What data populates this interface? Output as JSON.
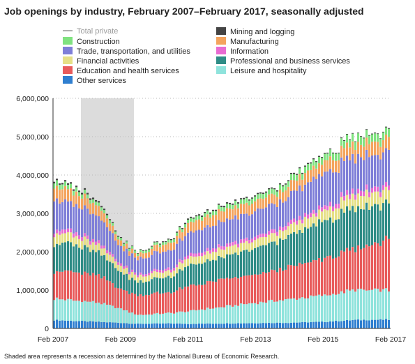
{
  "chart_data": {
    "type": "bar",
    "stacked": true,
    "title": "Job openings by industry, February 2007–February 2017, seasonally adjusted",
    "note": "Shaded area represents a recession as determined by the National Bureau of Economic Research.",
    "xlabel": "",
    "ylabel": "",
    "ylim": [
      0,
      6000000
    ],
    "y_ticks": [
      "0",
      "1,000,000",
      "2,000,000",
      "3,000,000",
      "4,000,000",
      "5,000,000",
      "6,000,000"
    ],
    "x_ticks": [
      "Feb 2007",
      "Feb 2009",
      "Feb 2011",
      "Feb 2013",
      "Feb 2015",
      "Feb 2017"
    ],
    "x_range": [
      "2007-02",
      "2017-02"
    ],
    "recession": {
      "start": "2007-12",
      "end": "2009-06"
    },
    "grid": "horizontal dotted",
    "legend_position": "top",
    "line_series": {
      "name": "Total private",
      "color": "#b0b0b0"
    },
    "series": [
      {
        "name": "Other services",
        "color": "#2f7fd0"
      },
      {
        "name": "Leisure and hospitality",
        "color": "#8fe3dc"
      },
      {
        "name": "Education and health services",
        "color": "#e85b5b"
      },
      {
        "name": "Professional and business services",
        "color": "#2e8c86"
      },
      {
        "name": "Financial activities",
        "color": "#e6e086"
      },
      {
        "name": "Information",
        "color": "#e86bd2"
      },
      {
        "name": "Trade, transportation, and utilities",
        "color": "#7f7fd8"
      },
      {
        "name": "Manufacturing",
        "color": "#f4a45e"
      },
      {
        "name": "Construction",
        "color": "#80e280"
      },
      {
        "name": "Mining and logging",
        "color": "#444444"
      }
    ],
    "anchors": {
      "dates": [
        "2007-02",
        "2007-08",
        "2008-06",
        "2009-03",
        "2009-08",
        "2010-08",
        "2011-02",
        "2012-02",
        "2013-02",
        "2014-02",
        "2015-02",
        "2016-02",
        "2017-02"
      ],
      "other": [
        220000,
        200000,
        170000,
        140000,
        120000,
        130000,
        120000,
        130000,
        140000,
        150000,
        170000,
        220000,
        230000
      ],
      "leisure": [
        560000,
        540000,
        500000,
        350000,
        230000,
        270000,
        330000,
        430000,
        530000,
        610000,
        680000,
        780000,
        760000
      ],
      "educ": [
        730000,
        740000,
        700000,
        500000,
        520000,
        540000,
        640000,
        710000,
        720000,
        830000,
        950000,
        1050000,
        1340000
      ],
      "prof": [
        720000,
        720000,
        620000,
        430000,
        340000,
        420000,
        540000,
        560000,
        680000,
        800000,
        970000,
        1070000,
        950000
      ],
      "fin": [
        270000,
        240000,
        190000,
        150000,
        150000,
        150000,
        200000,
        210000,
        210000,
        240000,
        270000,
        320000,
        350000
      ],
      "info": [
        100000,
        100000,
        80000,
        60000,
        50000,
        70000,
        80000,
        90000,
        90000,
        100000,
        110000,
        130000,
        130000
      ],
      "trade": [
        790000,
        740000,
        640000,
        420000,
        400000,
        480000,
        560000,
        620000,
        660000,
        700000,
        850000,
        870000,
        880000
      ],
      "manu": [
        350000,
        320000,
        260000,
        130000,
        120000,
        200000,
        250000,
        280000,
        260000,
        270000,
        300000,
        340000,
        330000
      ],
      "constr": [
        140000,
        120000,
        90000,
        60000,
        60000,
        70000,
        90000,
        110000,
        130000,
        150000,
        170000,
        210000,
        200000
      ],
      "mining": [
        40000,
        40000,
        40000,
        20000,
        15000,
        25000,
        30000,
        35000,
        30000,
        30000,
        25000,
        15000,
        20000
      ]
    }
  },
  "legend": [
    {
      "label": "Total private",
      "key": "line"
    },
    {
      "label": "Mining and logging",
      "key": "mining"
    },
    {
      "label": "Construction",
      "key": "constr"
    },
    {
      "label": "Manufacturing",
      "key": "manu"
    },
    {
      "label": "Trade, transportation, and utilities",
      "key": "trade"
    },
    {
      "label": "Information",
      "key": "info"
    },
    {
      "label": "Financial activities",
      "key": "fin"
    },
    {
      "label": "Professional and business services",
      "key": "prof"
    },
    {
      "label": "Education and health services",
      "key": "educ"
    },
    {
      "label": "Leisure and hospitality",
      "key": "leisure"
    },
    {
      "label": "Other services",
      "key": "other"
    }
  ],
  "colors": {
    "line": "#b0b0b0",
    "mining": "#444444",
    "constr": "#80e280",
    "manu": "#f4a45e",
    "trade": "#7f7fd8",
    "info": "#e86bd2",
    "fin": "#e6e086",
    "prof": "#2e8c86",
    "educ": "#e85b5b",
    "leisure": "#8fe3dc",
    "other": "#2f7fd0"
  }
}
